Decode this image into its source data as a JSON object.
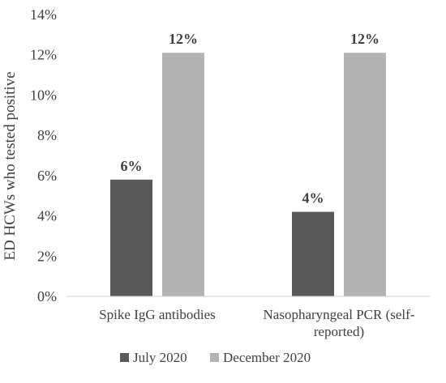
{
  "chart_data": {
    "type": "bar",
    "title": "",
    "xlabel": "",
    "ylabel": "ED HCWs who tested positive",
    "ylim": [
      0,
      14
    ],
    "yticks": [
      "0%",
      "2%",
      "4%",
      "6%",
      "8%",
      "10%",
      "12%",
      "14%"
    ],
    "categories": [
      [
        "Spike IgG antibodies"
      ],
      [
        "Nasopharyngeal PCR (self-",
        "reported)"
      ]
    ],
    "series": [
      {
        "name": "July 2020",
        "color": "#595959",
        "values": [
          5.8,
          4.2
        ],
        "labels": [
          "6%",
          "4%"
        ]
      },
      {
        "name": "December 2020",
        "color": "#b3b3b3",
        "values": [
          12.1,
          12.1
        ],
        "labels": [
          "12%",
          "12%"
        ]
      }
    ],
    "grid": false,
    "legend": "bottom"
  }
}
